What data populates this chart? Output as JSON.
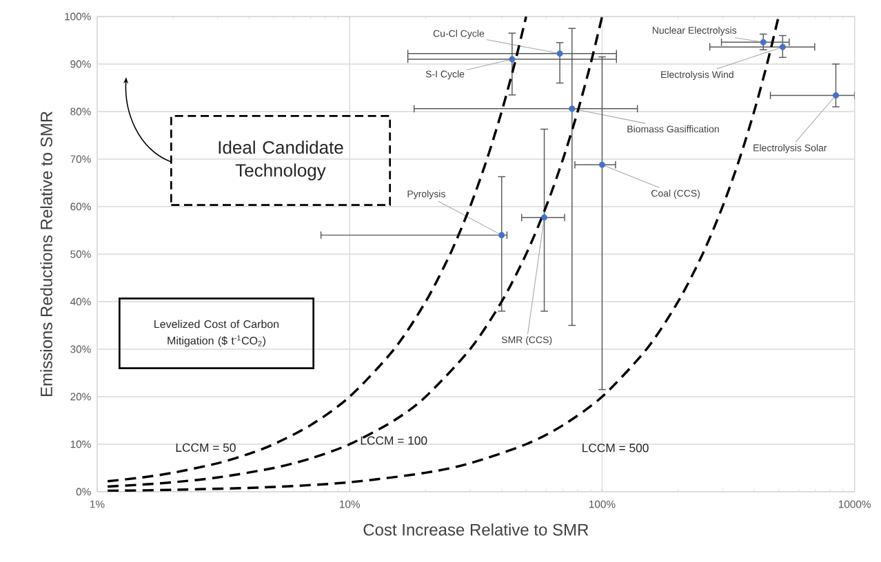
{
  "chart_data": {
    "type": "scatter",
    "xlabel": "Cost Increase Relative to SMR",
    "ylabel": "Emissions Reductions Relative to SMR",
    "log": "x",
    "grid": true,
    "xlim": [
      1,
      1000
    ],
    "ylim": [
      0,
      100
    ],
    "xticks": [
      {
        "value": 1,
        "label": "1%"
      },
      {
        "value": 10,
        "label": "10%"
      },
      {
        "value": 100,
        "label": "100%"
      },
      {
        "value": 1000,
        "label": "1000%"
      }
    ],
    "yticks": [
      {
        "value": 0,
        "label": "0%"
      },
      {
        "value": 10,
        "label": "10%"
      },
      {
        "value": 20,
        "label": "20%"
      },
      {
        "value": 30,
        "label": "30%"
      },
      {
        "value": 40,
        "label": "40%"
      },
      {
        "value": 50,
        "label": "50%"
      },
      {
        "value": 60,
        "label": "60%"
      },
      {
        "value": 70,
        "label": "70%"
      },
      {
        "value": 80,
        "label": "80%"
      },
      {
        "value": 90,
        "label": "90%"
      },
      {
        "value": 100,
        "label": "100%"
      }
    ],
    "annotations": [
      "Ideal Candidate Technology",
      "Levelized Cost of Carbon Mitigation ($ t$^{-1}$CO$_{2}$)"
    ],
    "series": [
      {
        "name": "Cu-Cl Cycle",
        "color": "#4472c4",
        "x": [
          68
        ],
        "values": [
          92.2
        ],
        "errors": [
          [
            86,
            94.5
          ]
        ],
        "xerrors": [
          [
            17,
            114
          ]
        ]
      },
      {
        "name": "S-I Cycle",
        "color": "#4472c4",
        "x": [
          44
        ],
        "values": [
          91
        ],
        "errors": [
          [
            83.5,
            96.5
          ]
        ],
        "xerrors": [
          [
            17,
            114
          ]
        ]
      },
      {
        "name": "Biomass Gasiffication",
        "color": "#4472c4",
        "x": [
          76
        ],
        "values": [
          80.6
        ],
        "errors": [
          [
            35,
            97.5
          ]
        ],
        "xerrors": [
          [
            18,
            138
          ]
        ]
      },
      {
        "name": "Coal (CCS)",
        "color": "#4472c4",
        "x": [
          100
        ],
        "values": [
          68.8
        ],
        "errors": [
          [
            21.5,
            91.5
          ]
        ],
        "xerrors": [
          [
            78,
            113
          ]
        ]
      },
      {
        "name": "Pyrolysis",
        "color": "#4472c4",
        "x": [
          40
        ],
        "values": [
          54
        ],
        "errors": [
          [
            38,
            66.3
          ]
        ],
        "xerrors": [
          [
            7.7,
            42
          ]
        ]
      },
      {
        "name": "SMR (CCS)",
        "color": "#4472c4",
        "x": [
          59
        ],
        "values": [
          57.7
        ],
        "errors": [
          [
            38,
            76.3
          ]
        ],
        "xerrors": [
          [
            48,
            71
          ]
        ]
      },
      {
        "name": "Nuclear Electrolysis",
        "color": "#4472c4",
        "x": [
          435
        ],
        "values": [
          94.6
        ],
        "errors": [
          [
            93,
            96.3
          ]
        ],
        "xerrors": [
          [
            297,
            551
          ]
        ]
      },
      {
        "name": "Electrolysis Wind",
        "color": "#4472c4",
        "x": [
          519
        ],
        "values": [
          93.6
        ],
        "errors": [
          [
            91.4,
            96
          ]
        ],
        "xerrors": [
          [
            267,
            695
          ]
        ]
      },
      {
        "name": "Electrolysis Solar",
        "color": "#4472c4",
        "x": [
          843
        ],
        "values": [
          83.4
        ],
        "errors": [
          [
            81,
            90
          ]
        ],
        "xerrors": [
          [
            464,
            1000
          ]
        ]
      },
      {
        "type": "line",
        "name": "LCCM = 50",
        "color": "#000000",
        "line_style": "dashed",
        "x": [
          1.1,
          1.5,
          2,
          3,
          4,
          5,
          7,
          10,
          15,
          20,
          25,
          30,
          35,
          40,
          45,
          50
        ],
        "values": [
          2.2,
          3,
          4,
          6,
          8,
          10,
          14,
          20,
          30,
          40,
          50,
          60,
          70,
          80,
          90,
          100
        ]
      },
      {
        "type": "line",
        "name": "LCCM = 100",
        "color": "#000000",
        "line_style": "dashed",
        "x": [
          1.1,
          1.5,
          2,
          3,
          5,
          7,
          10,
          15,
          20,
          30,
          40,
          50,
          60,
          70,
          80,
          90,
          100
        ],
        "values": [
          1.1,
          1.5,
          2,
          3,
          5,
          7,
          10,
          15,
          20,
          30,
          40,
          50,
          60,
          70,
          80,
          90,
          100
        ]
      },
      {
        "type": "line",
        "name": "LCCM = 500",
        "color": "#000000",
        "line_style": "dashed",
        "x": [
          1.1,
          2,
          5,
          10,
          20,
          30,
          50,
          70,
          100,
          150,
          200,
          250,
          300,
          350,
          400,
          450,
          500
        ],
        "values": [
          0.2,
          0.4,
          1,
          2,
          4,
          6,
          10,
          14,
          20,
          30,
          40,
          50,
          60,
          70,
          80,
          90,
          100
        ]
      }
    ]
  }
}
